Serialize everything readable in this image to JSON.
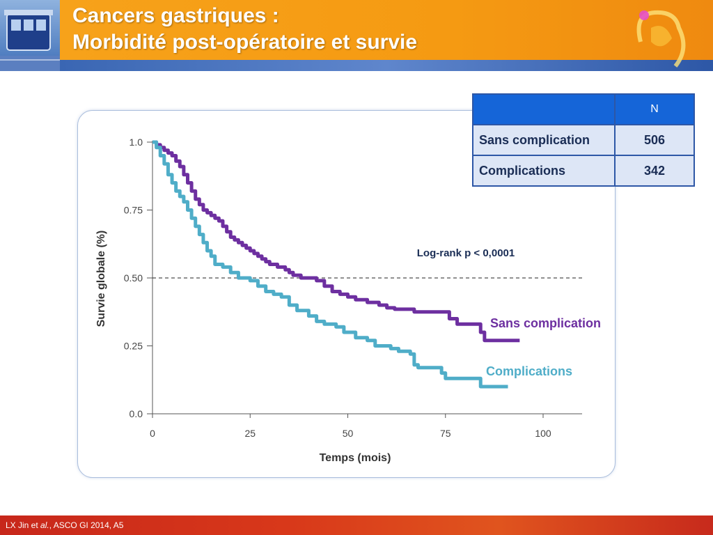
{
  "slide": {
    "title_line1": "Cancers gastriques :",
    "title_line2": "Morbidité post-opératoire et survie",
    "footer_pre": "LX Jin et ",
    "footer_italic": "al.",
    "footer_post": ", ASCO GI 2014, A5"
  },
  "table": {
    "header_blank": "",
    "header_n": "N",
    "rows": [
      {
        "label": "Sans complication",
        "value": "506"
      },
      {
        "label": "Complications",
        "value": "342"
      }
    ]
  },
  "colors": {
    "sans_complication": "#6d2fa0",
    "complications": "#4fadc8",
    "header_orange": "#f7a21a",
    "header_blue": "#2d57a6",
    "table_blue": "#1565d8"
  },
  "chart_data": {
    "type": "line",
    "xlabel": "Temps (mois)",
    "ylabel": "Survie globale (%)",
    "xlim": [
      0,
      110
    ],
    "ylim": [
      0,
      1
    ],
    "x_ticks": [
      {
        "value": 0,
        "label": "0"
      },
      {
        "value": 25,
        "label": "25"
      },
      {
        "value": 50,
        "label": "50"
      },
      {
        "value": 75,
        "label": "75"
      },
      {
        "value": 100,
        "label": "100"
      }
    ],
    "y_ticks": [
      {
        "value": 0,
        "label": "0.0"
      },
      {
        "value": 0.25,
        "label": "0.25"
      },
      {
        "value": 0.5,
        "label": "0.50"
      },
      {
        "value": 0.75,
        "label": "0.75"
      },
      {
        "value": 1.0,
        "label": "1.0"
      }
    ],
    "reference_line": {
      "y": 0.5,
      "style": "dashed"
    },
    "annotation": "Log-rank p < 0,0001",
    "series": [
      {
        "name": "Sans complication",
        "step": true,
        "points": [
          [
            0,
            1.0
          ],
          [
            1,
            0.99
          ],
          [
            2,
            0.98
          ],
          [
            3,
            0.97
          ],
          [
            4,
            0.96
          ],
          [
            5,
            0.95
          ],
          [
            6,
            0.93
          ],
          [
            7,
            0.91
          ],
          [
            8,
            0.88
          ],
          [
            9,
            0.85
          ],
          [
            10,
            0.82
          ],
          [
            11,
            0.79
          ],
          [
            12,
            0.77
          ],
          [
            13,
            0.75
          ],
          [
            14,
            0.74
          ],
          [
            15,
            0.73
          ],
          [
            16,
            0.72
          ],
          [
            17,
            0.71
          ],
          [
            18,
            0.69
          ],
          [
            19,
            0.67
          ],
          [
            20,
            0.65
          ],
          [
            21,
            0.64
          ],
          [
            22,
            0.63
          ],
          [
            23,
            0.62
          ],
          [
            24,
            0.61
          ],
          [
            25,
            0.6
          ],
          [
            26,
            0.59
          ],
          [
            27,
            0.58
          ],
          [
            28,
            0.57
          ],
          [
            29,
            0.56
          ],
          [
            30,
            0.55
          ],
          [
            32,
            0.54
          ],
          [
            34,
            0.53
          ],
          [
            35,
            0.52
          ],
          [
            36,
            0.51
          ],
          [
            38,
            0.5
          ],
          [
            42,
            0.49
          ],
          [
            44,
            0.47
          ],
          [
            46,
            0.45
          ],
          [
            48,
            0.44
          ],
          [
            50,
            0.43
          ],
          [
            52,
            0.42
          ],
          [
            55,
            0.41
          ],
          [
            58,
            0.4
          ],
          [
            60,
            0.39
          ],
          [
            62,
            0.385
          ],
          [
            67,
            0.375
          ],
          [
            76,
            0.35
          ],
          [
            78,
            0.33
          ],
          [
            84,
            0.3
          ],
          [
            85,
            0.27
          ],
          [
            94,
            0.27
          ]
        ]
      },
      {
        "name": "Complications",
        "step": true,
        "points": [
          [
            0,
            1.0
          ],
          [
            1,
            0.98
          ],
          [
            2,
            0.95
          ],
          [
            3,
            0.92
          ],
          [
            4,
            0.88
          ],
          [
            5,
            0.85
          ],
          [
            6,
            0.82
          ],
          [
            7,
            0.8
          ],
          [
            8,
            0.78
          ],
          [
            9,
            0.75
          ],
          [
            10,
            0.72
          ],
          [
            11,
            0.69
          ],
          [
            12,
            0.66
          ],
          [
            13,
            0.63
          ],
          [
            14,
            0.6
          ],
          [
            15,
            0.58
          ],
          [
            16,
            0.55
          ],
          [
            18,
            0.54
          ],
          [
            20,
            0.52
          ],
          [
            22,
            0.5
          ],
          [
            25,
            0.49
          ],
          [
            27,
            0.47
          ],
          [
            29,
            0.45
          ],
          [
            31,
            0.44
          ],
          [
            33,
            0.43
          ],
          [
            35,
            0.4
          ],
          [
            37,
            0.38
          ],
          [
            40,
            0.36
          ],
          [
            42,
            0.34
          ],
          [
            44,
            0.33
          ],
          [
            47,
            0.32
          ],
          [
            49,
            0.3
          ],
          [
            52,
            0.28
          ],
          [
            55,
            0.27
          ],
          [
            57,
            0.25
          ],
          [
            61,
            0.24
          ],
          [
            63,
            0.23
          ],
          [
            66,
            0.22
          ],
          [
            67,
            0.18
          ],
          [
            68,
            0.17
          ],
          [
            74,
            0.15
          ],
          [
            75,
            0.13
          ],
          [
            84,
            0.1
          ],
          [
            91,
            0.1
          ]
        ]
      }
    ]
  }
}
